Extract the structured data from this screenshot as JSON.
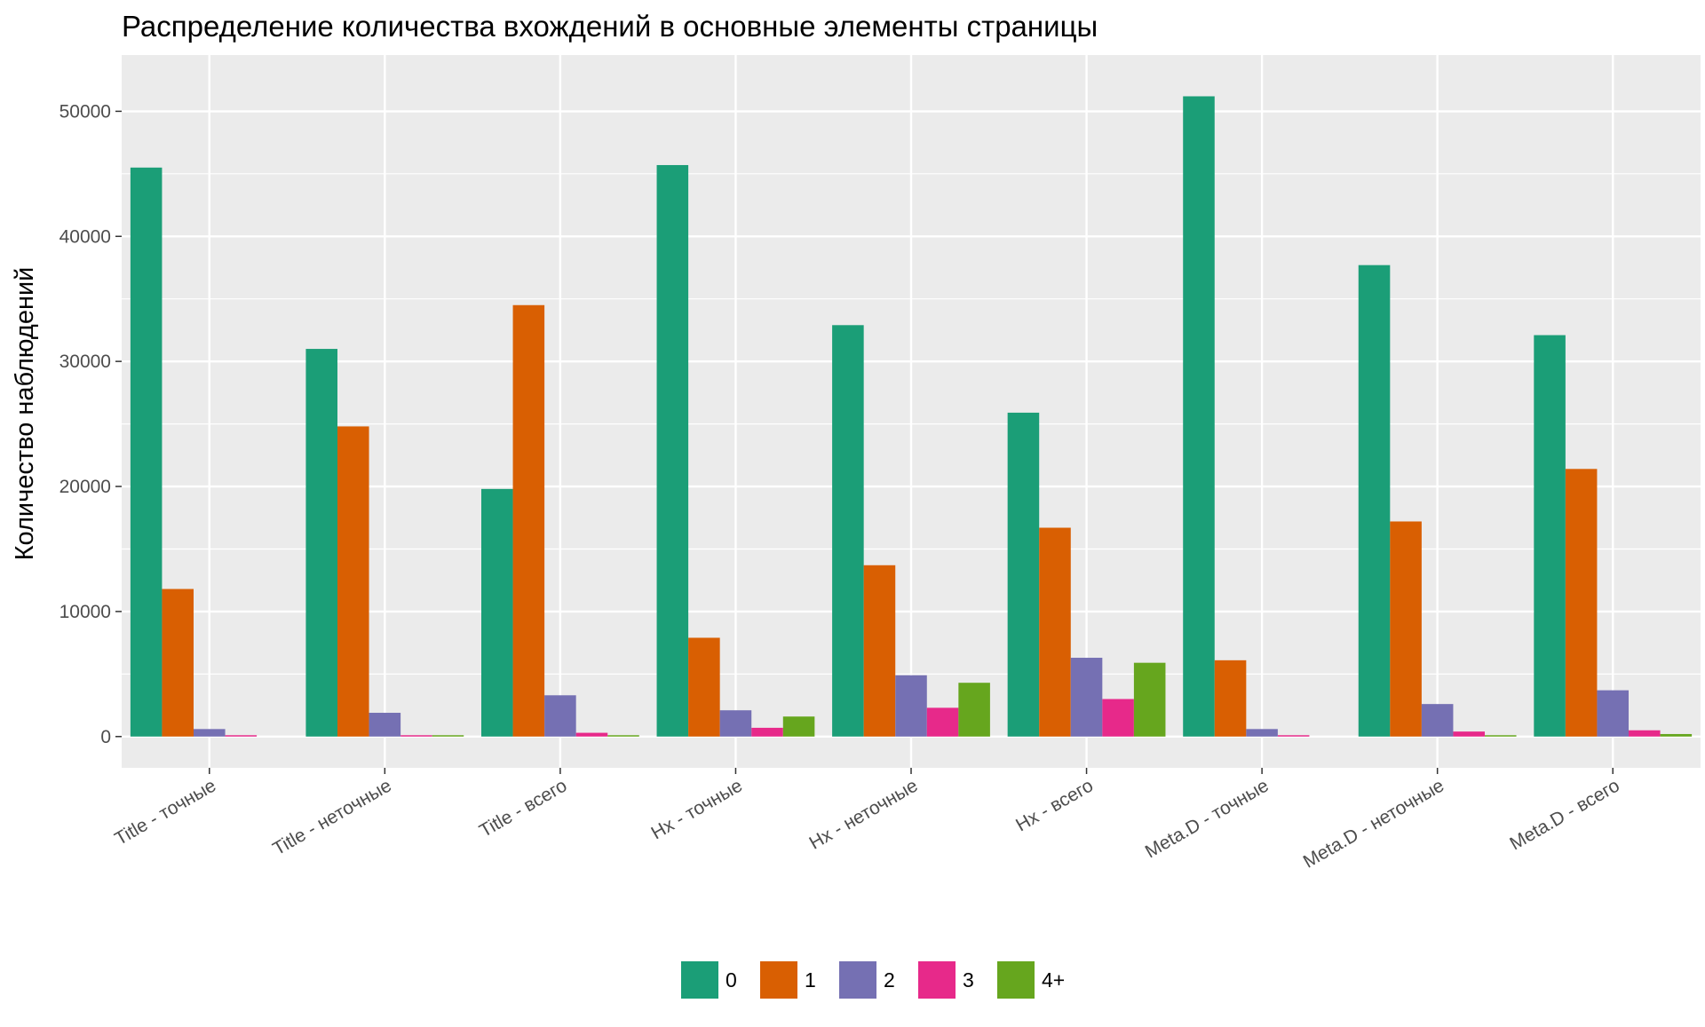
{
  "chart_data": {
    "type": "bar",
    "title": "Распределение количества вхождений в основные элементы страницы",
    "xlabel": "",
    "ylabel": "Количество наблюдений",
    "ylim": [
      -2500,
      54500
    ],
    "yticks": [
      0,
      10000,
      20000,
      30000,
      40000,
      50000
    ],
    "ytick_labels": [
      "0",
      "10000",
      "20000",
      "30000",
      "40000",
      "50000"
    ],
    "grid": true,
    "legend_position": "bottom",
    "categories": [
      "Title - точные",
      "Title - неточные",
      "Title - всего",
      "Hx - точные",
      "Hx - неточные",
      "Hx - всего",
      "Meta.D - точные",
      "Meta.D - неточные",
      "Meta.D - всего"
    ],
    "series": [
      {
        "name": "0",
        "color": "#1b9e77",
        "values": [
          45500,
          31000,
          19800,
          45700,
          32900,
          25900,
          51200,
          37700,
          32100
        ]
      },
      {
        "name": "1",
        "color": "#d95f02",
        "values": [
          11800,
          24800,
          34500,
          7900,
          13700,
          16700,
          6100,
          17200,
          21400
        ]
      },
      {
        "name": "2",
        "color": "#7570b3",
        "values": [
          600,
          1900,
          3300,
          2100,
          4900,
          6300,
          600,
          2600,
          3700
        ]
      },
      {
        "name": "3",
        "color": "#e7298a",
        "values": [
          0,
          100,
          300,
          700,
          2300,
          3000,
          100,
          400,
          500
        ]
      },
      {
        "name": "4+",
        "color": "#66a61e",
        "values": [
          null,
          0,
          100,
          1600,
          4300,
          5900,
          null,
          100,
          200
        ]
      }
    ]
  }
}
